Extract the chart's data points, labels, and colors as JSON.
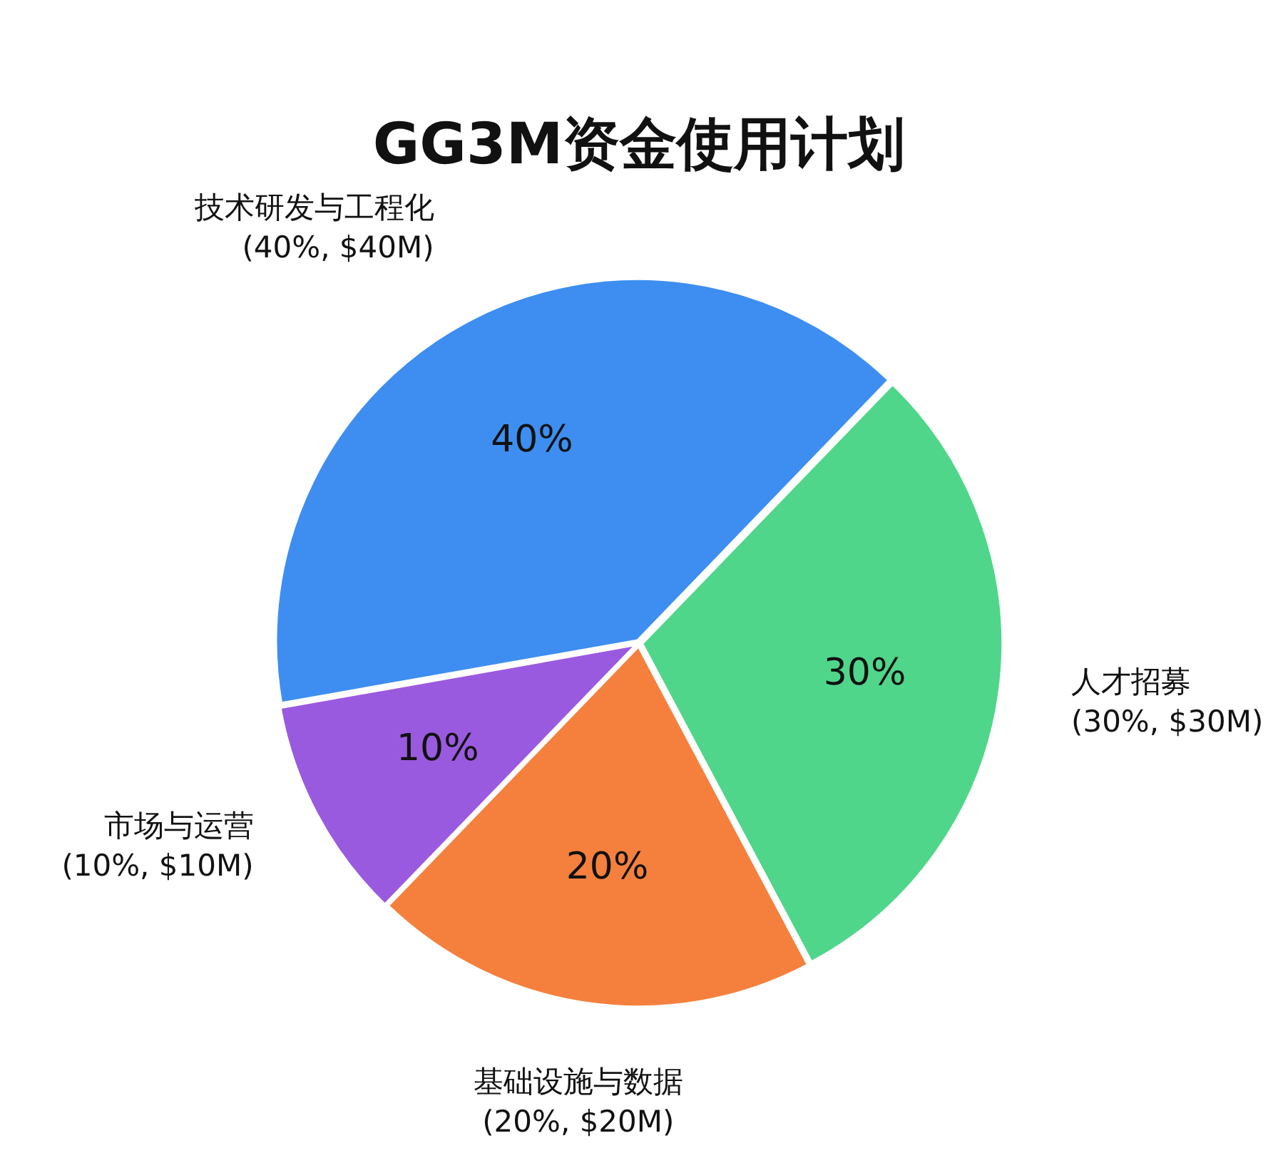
{
  "chart_data": {
    "type": "pie",
    "title": "GG3M资金使用计划",
    "categories": [
      "技术研发与工程化",
      "人才招募",
      "基础设施与数据",
      "市场与运营"
    ],
    "values": [
      40,
      30,
      20,
      10
    ],
    "colors": [
      "#3d8ef0",
      "#4fd68a",
      "#f5803e",
      "#9a5ae0"
    ],
    "value_labels": [
      "40%",
      "30%",
      "20%",
      "10%"
    ],
    "annotations": [
      "(40%, $40M)",
      "(30%, $30M)",
      "(20%, $20M)",
      "(10%, $10M)"
    ],
    "legend": false
  }
}
